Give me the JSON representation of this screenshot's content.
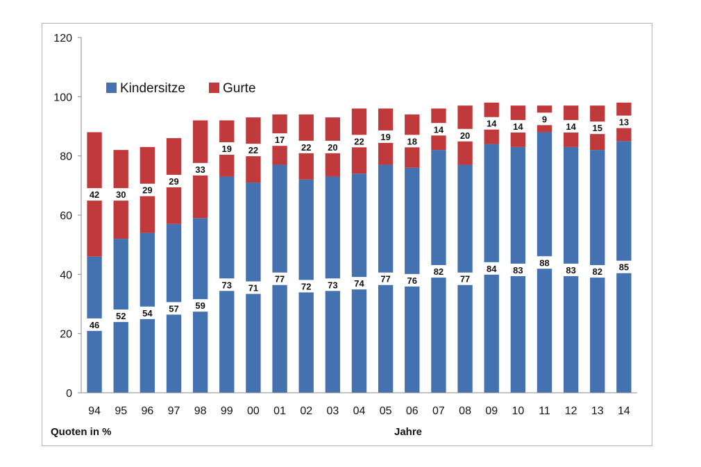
{
  "chart_data": {
    "type": "bar",
    "stacked": true,
    "categories": [
      "94",
      "95",
      "96",
      "97",
      "98",
      "99",
      "00",
      "01",
      "02",
      "03",
      "04",
      "05",
      "06",
      "07",
      "08",
      "09",
      "10",
      "11",
      "12",
      "13",
      "14"
    ],
    "series": [
      {
        "name": "Kindersitze",
        "color": "#4472b0",
        "values": [
          46,
          52,
          54,
          57,
          59,
          73,
          71,
          77,
          72,
          73,
          74,
          77,
          76,
          82,
          77,
          84,
          83,
          88,
          83,
          82,
          85
        ]
      },
      {
        "name": "Gurte",
        "color": "#c0393b",
        "values": [
          42,
          30,
          29,
          29,
          33,
          19,
          22,
          17,
          22,
          20,
          22,
          19,
          18,
          14,
          20,
          14,
          14,
          9,
          14,
          15,
          13
        ]
      }
    ],
    "ylim": [
      0,
      120
    ],
    "yticks": [
      0,
      20,
      40,
      60,
      80,
      100,
      120
    ],
    "ylabel": "Quoten in %",
    "xlabel": "Jahre",
    "legend_position": "top-left",
    "grid": false
  }
}
